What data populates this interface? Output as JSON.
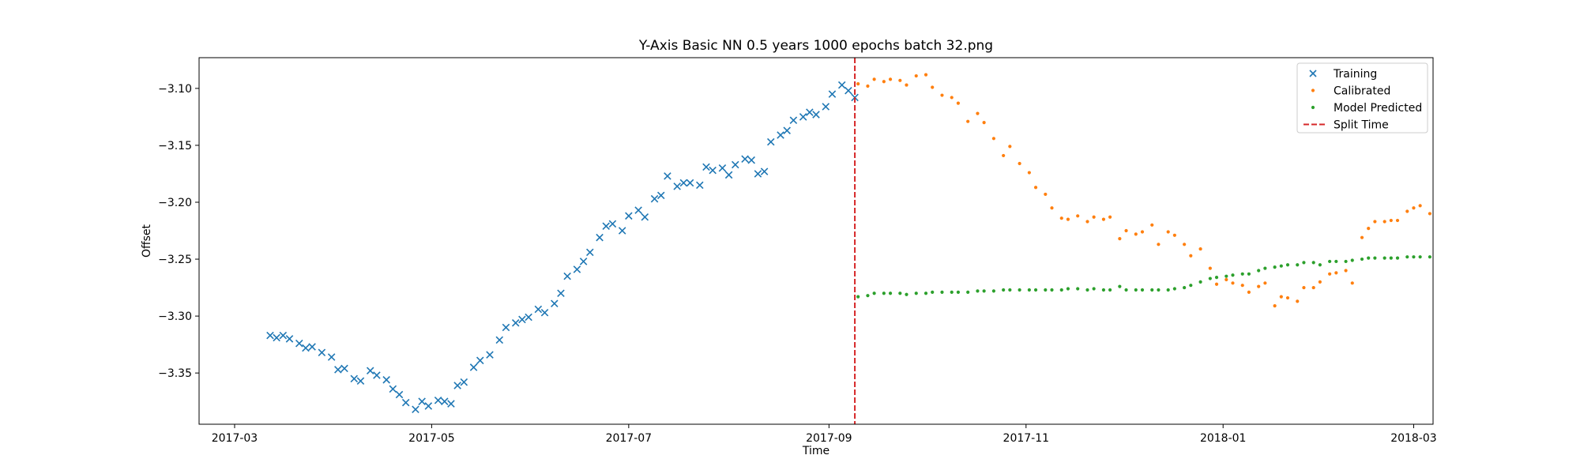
{
  "chart_data": {
    "type": "scatter",
    "title": "Y-Axis Basic NN 0.5 years 1000 epochs batch 32.png",
    "xlabel": "Time",
    "ylabel": "Offset",
    "x_type": "date",
    "xlim": [
      "2017-02-18",
      "2018-03-07"
    ],
    "ylim": [
      -3.395,
      -3.073
    ],
    "x_ticks": [
      "2017-03-01",
      "2017-05-01",
      "2017-07-01",
      "2017-09-01",
      "2017-11-01",
      "2018-01-01",
      "2018-03-01"
    ],
    "x_tick_labels": [
      "2017-03",
      "2017-05",
      "2017-07",
      "2017-09",
      "2017-11",
      "2018-01",
      "2018-03"
    ],
    "y_ticks": [
      -3.35,
      -3.3,
      -3.25,
      -3.2,
      -3.15,
      -3.1
    ],
    "y_tick_labels": [
      "−3.35",
      "−3.30",
      "−3.25",
      "−3.20",
      "−3.15",
      "−3.10"
    ],
    "legend_position": "top-right",
    "grid": false,
    "split_time": "2017-09-09",
    "series": [
      {
        "name": "Training",
        "marker": "x",
        "color": "#1f77b4",
        "points": [
          [
            "2017-03-12",
            -3.317
          ],
          [
            "2017-03-14",
            -3.319
          ],
          [
            "2017-03-16",
            -3.317
          ],
          [
            "2017-03-18",
            -3.32
          ],
          [
            "2017-03-21",
            -3.324
          ],
          [
            "2017-03-23",
            -3.328
          ],
          [
            "2017-03-25",
            -3.327
          ],
          [
            "2017-03-28",
            -3.332
          ],
          [
            "2017-03-31",
            -3.336
          ],
          [
            "2017-04-02",
            -3.347
          ],
          [
            "2017-04-04",
            -3.346
          ],
          [
            "2017-04-07",
            -3.355
          ],
          [
            "2017-04-09",
            -3.357
          ],
          [
            "2017-04-12",
            -3.348
          ],
          [
            "2017-04-14",
            -3.352
          ],
          [
            "2017-04-17",
            -3.356
          ],
          [
            "2017-04-19",
            -3.364
          ],
          [
            "2017-04-21",
            -3.369
          ],
          [
            "2017-04-23",
            -3.376
          ],
          [
            "2017-04-26",
            -3.382
          ],
          [
            "2017-04-28",
            -3.375
          ],
          [
            "2017-04-30",
            -3.379
          ],
          [
            "2017-05-03",
            -3.374
          ],
          [
            "2017-05-05",
            -3.375
          ],
          [
            "2017-05-07",
            -3.377
          ],
          [
            "2017-05-09",
            -3.361
          ],
          [
            "2017-05-11",
            -3.358
          ],
          [
            "2017-05-14",
            -3.345
          ],
          [
            "2017-05-16",
            -3.339
          ],
          [
            "2017-05-19",
            -3.334
          ],
          [
            "2017-05-22",
            -3.321
          ],
          [
            "2017-05-24",
            -3.31
          ],
          [
            "2017-05-27",
            -3.306
          ],
          [
            "2017-05-29",
            -3.303
          ],
          [
            "2017-05-31",
            -3.301
          ],
          [
            "2017-06-03",
            -3.294
          ],
          [
            "2017-06-05",
            -3.297
          ],
          [
            "2017-06-08",
            -3.289
          ],
          [
            "2017-06-10",
            -3.28
          ],
          [
            "2017-06-12",
            -3.265
          ],
          [
            "2017-06-15",
            -3.259
          ],
          [
            "2017-06-17",
            -3.252
          ],
          [
            "2017-06-19",
            -3.244
          ],
          [
            "2017-06-22",
            -3.231
          ],
          [
            "2017-06-24",
            -3.221
          ],
          [
            "2017-06-26",
            -3.219
          ],
          [
            "2017-06-29",
            -3.225
          ],
          [
            "2017-07-01",
            -3.212
          ],
          [
            "2017-07-04",
            -3.207
          ],
          [
            "2017-07-06",
            -3.213
          ],
          [
            "2017-07-09",
            -3.197
          ],
          [
            "2017-07-11",
            -3.194
          ],
          [
            "2017-07-13",
            -3.177
          ],
          [
            "2017-07-16",
            -3.186
          ],
          [
            "2017-07-18",
            -3.183
          ],
          [
            "2017-07-20",
            -3.183
          ],
          [
            "2017-07-23",
            -3.185
          ],
          [
            "2017-07-25",
            -3.169
          ],
          [
            "2017-07-27",
            -3.172
          ],
          [
            "2017-07-30",
            -3.17
          ],
          [
            "2017-08-01",
            -3.176
          ],
          [
            "2017-08-03",
            -3.167
          ],
          [
            "2017-08-06",
            -3.162
          ],
          [
            "2017-08-08",
            -3.163
          ],
          [
            "2017-08-10",
            -3.175
          ],
          [
            "2017-08-12",
            -3.173
          ],
          [
            "2017-08-14",
            -3.147
          ],
          [
            "2017-08-17",
            -3.141
          ],
          [
            "2017-08-19",
            -3.137
          ],
          [
            "2017-08-21",
            -3.128
          ],
          [
            "2017-08-24",
            -3.125
          ],
          [
            "2017-08-26",
            -3.121
          ],
          [
            "2017-08-28",
            -3.123
          ],
          [
            "2017-08-31",
            -3.116
          ],
          [
            "2017-09-02",
            -3.105
          ],
          [
            "2017-09-05",
            -3.097
          ],
          [
            "2017-09-07",
            -3.102
          ],
          [
            "2017-09-09",
            -3.108
          ]
        ]
      },
      {
        "name": "Calibrated",
        "marker": "dot",
        "color": "#ff7f0e",
        "points": [
          [
            "2017-09-10",
            -3.096
          ],
          [
            "2017-09-13",
            -3.098
          ],
          [
            "2017-09-15",
            -3.092
          ],
          [
            "2017-09-18",
            -3.094
          ],
          [
            "2017-09-20",
            -3.092
          ],
          [
            "2017-09-23",
            -3.093
          ],
          [
            "2017-09-25",
            -3.097
          ],
          [
            "2017-09-28",
            -3.089
          ],
          [
            "2017-10-01",
            -3.088
          ],
          [
            "2017-10-03",
            -3.099
          ],
          [
            "2017-10-06",
            -3.106
          ],
          [
            "2017-10-09",
            -3.108
          ],
          [
            "2017-10-11",
            -3.113
          ],
          [
            "2017-10-14",
            -3.129
          ],
          [
            "2017-10-17",
            -3.122
          ],
          [
            "2017-10-19",
            -3.13
          ],
          [
            "2017-10-22",
            -3.144
          ],
          [
            "2017-10-25",
            -3.159
          ],
          [
            "2017-10-27",
            -3.151
          ],
          [
            "2017-10-30",
            -3.166
          ],
          [
            "2017-11-02",
            -3.174
          ],
          [
            "2017-11-04",
            -3.187
          ],
          [
            "2017-11-07",
            -3.193
          ],
          [
            "2017-11-09",
            -3.205
          ],
          [
            "2017-11-12",
            -3.214
          ],
          [
            "2017-11-14",
            -3.215
          ],
          [
            "2017-11-17",
            -3.212
          ],
          [
            "2017-11-20",
            -3.217
          ],
          [
            "2017-11-22",
            -3.213
          ],
          [
            "2017-11-25",
            -3.215
          ],
          [
            "2017-11-27",
            -3.213
          ],
          [
            "2017-11-30",
            -3.232
          ],
          [
            "2017-12-02",
            -3.225
          ],
          [
            "2017-12-05",
            -3.228
          ],
          [
            "2017-12-07",
            -3.226
          ],
          [
            "2017-12-10",
            -3.22
          ],
          [
            "2017-12-12",
            -3.237
          ],
          [
            "2017-12-15",
            -3.226
          ],
          [
            "2017-12-17",
            -3.229
          ],
          [
            "2017-12-20",
            -3.237
          ],
          [
            "2017-12-22",
            -3.247
          ],
          [
            "2017-12-25",
            -3.241
          ],
          [
            "2017-12-28",
            -3.258
          ],
          [
            "2017-12-30",
            -3.272
          ],
          [
            "2018-01-02",
            -3.268
          ],
          [
            "2018-01-04",
            -3.271
          ],
          [
            "2018-01-07",
            -3.273
          ],
          [
            "2018-01-09",
            -3.279
          ],
          [
            "2018-01-12",
            -3.274
          ],
          [
            "2018-01-14",
            -3.271
          ],
          [
            "2018-01-17",
            -3.291
          ],
          [
            "2018-01-19",
            -3.283
          ],
          [
            "2018-01-21",
            -3.284
          ],
          [
            "2018-01-24",
            -3.287
          ],
          [
            "2018-01-26",
            -3.275
          ],
          [
            "2018-01-29",
            -3.275
          ],
          [
            "2018-01-31",
            -3.27
          ],
          [
            "2018-02-03",
            -3.263
          ],
          [
            "2018-02-05",
            -3.262
          ],
          [
            "2018-02-08",
            -3.26
          ],
          [
            "2018-02-10",
            -3.271
          ],
          [
            "2018-02-13",
            -3.231
          ],
          [
            "2018-02-15",
            -3.223
          ],
          [
            "2018-02-17",
            -3.217
          ],
          [
            "2018-02-20",
            -3.217
          ],
          [
            "2018-02-22",
            -3.216
          ],
          [
            "2018-02-24",
            -3.216
          ],
          [
            "2018-02-27",
            -3.208
          ],
          [
            "2018-03-01",
            -3.205
          ],
          [
            "2018-03-03",
            -3.203
          ],
          [
            "2018-03-06",
            -3.21
          ]
        ]
      },
      {
        "name": "Model Predicted",
        "marker": "dot",
        "color": "#2ca02c",
        "points": [
          [
            "2017-09-10",
            -3.283
          ],
          [
            "2017-09-13",
            -3.282
          ],
          [
            "2017-09-15",
            -3.28
          ],
          [
            "2017-09-18",
            -3.28
          ],
          [
            "2017-09-20",
            -3.28
          ],
          [
            "2017-09-23",
            -3.28
          ],
          [
            "2017-09-25",
            -3.281
          ],
          [
            "2017-09-28",
            -3.28
          ],
          [
            "2017-10-01",
            -3.28
          ],
          [
            "2017-10-03",
            -3.279
          ],
          [
            "2017-10-06",
            -3.279
          ],
          [
            "2017-10-09",
            -3.279
          ],
          [
            "2017-10-11",
            -3.279
          ],
          [
            "2017-10-14",
            -3.279
          ],
          [
            "2017-10-17",
            -3.278
          ],
          [
            "2017-10-19",
            -3.278
          ],
          [
            "2017-10-22",
            -3.278
          ],
          [
            "2017-10-25",
            -3.277
          ],
          [
            "2017-10-27",
            -3.277
          ],
          [
            "2017-10-30",
            -3.277
          ],
          [
            "2017-11-02",
            -3.277
          ],
          [
            "2017-11-04",
            -3.277
          ],
          [
            "2017-11-07",
            -3.277
          ],
          [
            "2017-11-09",
            -3.277
          ],
          [
            "2017-11-12",
            -3.277
          ],
          [
            "2017-11-14",
            -3.276
          ],
          [
            "2017-11-17",
            -3.276
          ],
          [
            "2017-11-20",
            -3.277
          ],
          [
            "2017-11-22",
            -3.276
          ],
          [
            "2017-11-25",
            -3.277
          ],
          [
            "2017-11-27",
            -3.277
          ],
          [
            "2017-11-30",
            -3.274
          ],
          [
            "2017-12-02",
            -3.277
          ],
          [
            "2017-12-05",
            -3.277
          ],
          [
            "2017-12-07",
            -3.277
          ],
          [
            "2017-12-10",
            -3.277
          ],
          [
            "2017-12-12",
            -3.277
          ],
          [
            "2017-12-15",
            -3.277
          ],
          [
            "2017-12-17",
            -3.276
          ],
          [
            "2017-12-20",
            -3.275
          ],
          [
            "2017-12-22",
            -3.273
          ],
          [
            "2017-12-25",
            -3.27
          ],
          [
            "2017-12-28",
            -3.267
          ],
          [
            "2017-12-30",
            -3.266
          ],
          [
            "2018-01-02",
            -3.265
          ],
          [
            "2018-01-04",
            -3.264
          ],
          [
            "2018-01-07",
            -3.263
          ],
          [
            "2018-01-09",
            -3.263
          ],
          [
            "2018-01-12",
            -3.26
          ],
          [
            "2018-01-14",
            -3.258
          ],
          [
            "2018-01-17",
            -3.257
          ],
          [
            "2018-01-19",
            -3.256
          ],
          [
            "2018-01-21",
            -3.255
          ],
          [
            "2018-01-24",
            -3.255
          ],
          [
            "2018-01-26",
            -3.253
          ],
          [
            "2018-01-29",
            -3.253
          ],
          [
            "2018-01-31",
            -3.255
          ],
          [
            "2018-02-03",
            -3.252
          ],
          [
            "2018-02-05",
            -3.252
          ],
          [
            "2018-02-08",
            -3.252
          ],
          [
            "2018-02-10",
            -3.251
          ],
          [
            "2018-02-13",
            -3.25
          ],
          [
            "2018-02-15",
            -3.249
          ],
          [
            "2018-02-17",
            -3.249
          ],
          [
            "2018-02-20",
            -3.249
          ],
          [
            "2018-02-22",
            -3.249
          ],
          [
            "2018-02-24",
            -3.249
          ],
          [
            "2018-02-27",
            -3.248
          ],
          [
            "2018-03-01",
            -3.248
          ],
          [
            "2018-03-03",
            -3.248
          ],
          [
            "2018-03-06",
            -3.248
          ]
        ]
      }
    ],
    "legend": [
      {
        "label": "Training",
        "marker": "x",
        "color": "#1f77b4"
      },
      {
        "label": "Calibrated",
        "marker": "dot",
        "color": "#ff7f0e"
      },
      {
        "label": "Model Predicted",
        "marker": "dot",
        "color": "#2ca02c"
      },
      {
        "label": "Split Time",
        "marker": "dashed-line",
        "color": "#d62728"
      }
    ]
  }
}
